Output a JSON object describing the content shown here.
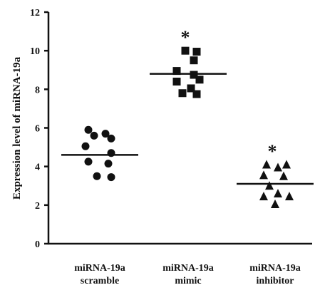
{
  "chart_data": {
    "type": "scatter",
    "ylabel": "Expression level of miRNA-19a",
    "ylim": [
      0,
      12
    ],
    "yticks": [
      "0",
      "2",
      "4",
      "6",
      "8",
      "10",
      "12"
    ],
    "grid": false,
    "categories": [
      {
        "line1": "miRNA-19a",
        "line2": "scramble"
      },
      {
        "line1": "miRNA-19a",
        "line2": "mimic"
      },
      {
        "line1": "miRNA-19a",
        "line2": "inhibitor"
      }
    ],
    "series": [
      {
        "marker": "circle",
        "points": [
          [
            -0.2,
            5.9
          ],
          [
            0.1,
            5.7
          ],
          [
            -0.1,
            5.6
          ],
          [
            0.2,
            5.45
          ],
          [
            -0.25,
            5.05
          ],
          [
            0.2,
            4.7
          ],
          [
            -0.2,
            4.25
          ],
          [
            0.15,
            4.15
          ],
          [
            -0.05,
            3.5
          ],
          [
            0.2,
            3.45
          ]
        ],
        "median": 4.6,
        "annotation": ""
      },
      {
        "marker": "square",
        "points": [
          [
            -0.05,
            10.0
          ],
          [
            0.15,
            9.95
          ],
          [
            0.1,
            9.5
          ],
          [
            -0.2,
            8.95
          ],
          [
            0.1,
            8.75
          ],
          [
            -0.2,
            8.4
          ],
          [
            0.2,
            8.5
          ],
          [
            0.05,
            8.05
          ],
          [
            -0.1,
            7.8
          ],
          [
            0.15,
            7.75
          ]
        ],
        "median": 8.8,
        "annotation": "*"
      },
      {
        "marker": "triangle",
        "points": [
          [
            -0.15,
            4.1
          ],
          [
            0.2,
            4.1
          ],
          [
            0.05,
            3.95
          ],
          [
            -0.2,
            3.55
          ],
          [
            0.15,
            3.5
          ],
          [
            -0.1,
            3.0
          ],
          [
            0.05,
            2.6
          ],
          [
            -0.2,
            2.45
          ],
          [
            0.25,
            2.45
          ],
          [
            0.0,
            2.05
          ]
        ],
        "median": 3.1,
        "annotation": "*"
      }
    ]
  }
}
